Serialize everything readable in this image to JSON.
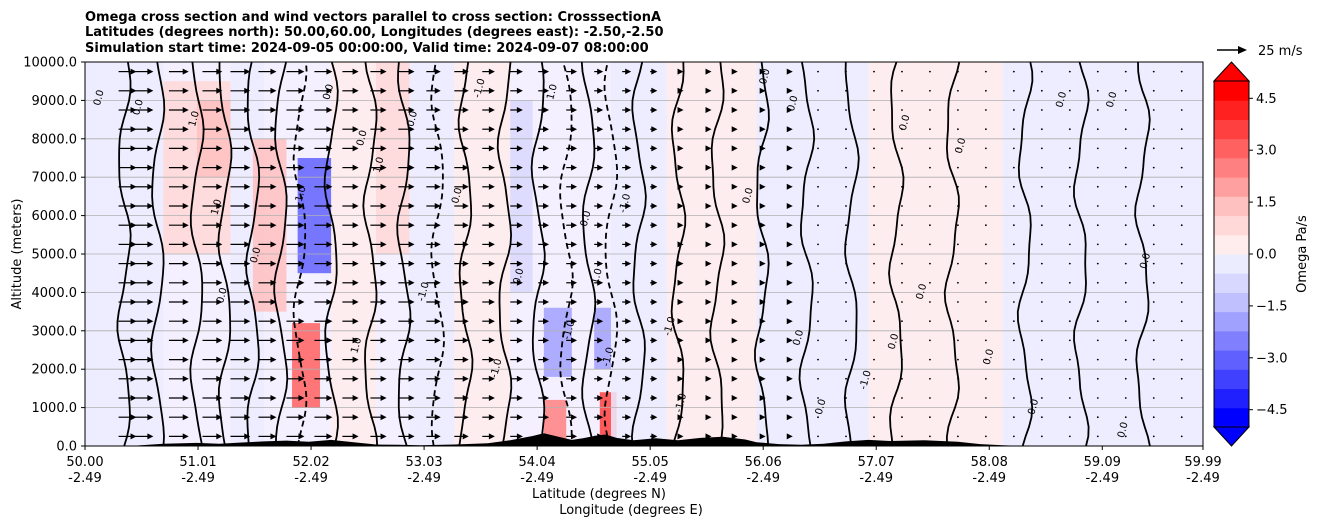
{
  "chart_data": {
    "type": "heatmap",
    "title_lines": [
      "Omega cross section and wind vectors parallel to cross section: CrosssectionA",
      "Latitudes (degrees north): 50.00,60.00, Longitudes (degrees east): -2.50,-2.50",
      "Simulation start time: 2024-09-05 00:00:00, Valid time: 2024-09-07 08:00:00"
    ],
    "xlabel": "Latitude (degrees N)",
    "xlabel2": "Longitude (degrees E)",
    "ylabel": "Altitude (meters)",
    "xlim": [
      50.0,
      59.99
    ],
    "ylim": [
      0,
      10000
    ],
    "grid": "horizontal",
    "x_ticks": [
      {
        "lat": "50.00",
        "lon": "-2.49",
        "v": 50.0
      },
      {
        "lat": "51.01",
        "lon": "-2.49",
        "v": 51.01
      },
      {
        "lat": "52.02",
        "lon": "-2.49",
        "v": 52.02
      },
      {
        "lat": "53.03",
        "lon": "-2.49",
        "v": 53.03
      },
      {
        "lat": "54.04",
        "lon": "-2.49",
        "v": 54.04
      },
      {
        "lat": "55.05",
        "lon": "-2.49",
        "v": 55.05
      },
      {
        "lat": "56.06",
        "lon": "-2.49",
        "v": 56.06
      },
      {
        "lat": "57.07",
        "lon": "-2.49",
        "v": 57.07
      },
      {
        "lat": "58.08",
        "lon": "-2.49",
        "v": 58.08
      },
      {
        "lat": "59.09",
        "lon": "-2.49",
        "v": 59.09
      },
      {
        "lat": "59.99",
        "lon": "-2.49",
        "v": 59.99
      }
    ],
    "y_ticks": [
      {
        "label": "0.0",
        "v": 0
      },
      {
        "label": "1000.0",
        "v": 1000
      },
      {
        "label": "2000.0",
        "v": 2000
      },
      {
        "label": "3000.0",
        "v": 3000
      },
      {
        "label": "4000.0",
        "v": 4000
      },
      {
        "label": "5000.0",
        "v": 5000
      },
      {
        "label": "6000.0",
        "v": 6000
      },
      {
        "label": "7000.0",
        "v": 7000
      },
      {
        "label": "8000.0",
        "v": 8000
      },
      {
        "label": "9000.0",
        "v": 9000
      },
      {
        "label": "10000.0",
        "v": 10000
      }
    ],
    "colorbar": {
      "label": "Omega Pa/s",
      "range": [
        -5.0,
        5.0
      ],
      "extend": "both",
      "ticks": [
        {
          "label": "4.5",
          "v": 4.5
        },
        {
          "label": "3.0",
          "v": 3.0
        },
        {
          "label": "1.5",
          "v": 1.5
        },
        {
          "label": "0.0",
          "v": 0.0
        },
        {
          "label": "−1.5",
          "v": -1.5
        },
        {
          "label": "−3.0",
          "v": -3.0
        },
        {
          "label": "−4.5",
          "v": -4.5
        }
      ],
      "colors": [
        "#0000ff",
        "#2020ff",
        "#4040ff",
        "#6060ff",
        "#8080ff",
        "#a0a0ff",
        "#c0c0ff",
        "#d8d8ff",
        "#ececff",
        "#ffecec",
        "#ffd8d8",
        "#ffc0c0",
        "#ffa0a0",
        "#ff8080",
        "#ff6060",
        "#ff4040",
        "#ff2020",
        "#ff0000"
      ]
    },
    "vector_key": {
      "label": "25 m/s"
    },
    "contour_labels": [
      "0.0",
      "1.0",
      "-1.0"
    ],
    "omega_cells": [
      {
        "x0": 50.0,
        "x1": 50.7,
        "y0": 0,
        "y1": 10000,
        "v": -0.3
      },
      {
        "x0": 50.7,
        "x1": 51.3,
        "y0": 5000,
        "y1": 9500,
        "v": 0.8
      },
      {
        "x0": 51.0,
        "x1": 51.3,
        "y0": 7000,
        "y1": 9000,
        "v": 1.5
      },
      {
        "x0": 51.3,
        "x1": 51.6,
        "y0": 0,
        "y1": 10000,
        "v": -0.3
      },
      {
        "x0": 51.5,
        "x1": 51.8,
        "y0": 3500,
        "y1": 8000,
        "v": 1.2
      },
      {
        "x0": 51.9,
        "x1": 52.2,
        "y0": 4500,
        "y1": 7500,
        "v": -2.8
      },
      {
        "x0": 51.85,
        "x1": 52.1,
        "y0": 1000,
        "y1": 3200,
        "v": 2.8
      },
      {
        "x0": 52.2,
        "x1": 52.6,
        "y0": 0,
        "y1": 10000,
        "v": 0.4
      },
      {
        "x0": 52.6,
        "x1": 52.9,
        "y0": 5000,
        "y1": 10000,
        "v": 0.8
      },
      {
        "x0": 52.9,
        "x1": 53.3,
        "y0": 0,
        "y1": 10000,
        "v": -0.4
      },
      {
        "x0": 53.3,
        "x1": 53.8,
        "y0": 0,
        "y1": 10000,
        "v": 0.3
      },
      {
        "x0": 53.8,
        "x1": 54.0,
        "y0": 4000,
        "y1": 9000,
        "v": -0.6
      },
      {
        "x0": 54.1,
        "x1": 54.35,
        "y0": 1800,
        "y1": 3600,
        "v": -2.0
      },
      {
        "x0": 54.1,
        "x1": 54.3,
        "y0": 0,
        "y1": 1200,
        "v": 2.6
      },
      {
        "x0": 54.55,
        "x1": 54.7,
        "y0": 2000,
        "y1": 3600,
        "v": -1.8
      },
      {
        "x0": 54.6,
        "x1": 54.75,
        "y0": 0,
        "y1": 1400,
        "v": 3.5
      },
      {
        "x0": 54.7,
        "x1": 55.2,
        "y0": 0,
        "y1": 10000,
        "v": -0.3
      },
      {
        "x0": 55.2,
        "x1": 56.0,
        "y0": 0,
        "y1": 10000,
        "v": 0.2
      },
      {
        "x0": 56.0,
        "x1": 57.0,
        "y0": 0,
        "y1": 10000,
        "v": -0.2
      },
      {
        "x0": 57.0,
        "x1": 58.2,
        "y0": 0,
        "y1": 10000,
        "v": 0.2
      },
      {
        "x0": 58.2,
        "x1": 59.99,
        "y0": 0,
        "y1": 10000,
        "v": -0.2
      }
    ],
    "vector_columns": [
      50.3,
      50.45,
      50.75,
      51.05,
      51.3,
      51.55,
      51.8,
      52.05,
      52.3,
      52.55,
      52.8,
      53.05,
      53.3,
      53.55,
      53.8,
      54.05,
      54.3,
      54.55,
      54.8,
      55.05,
      55.3,
      55.55,
      55.8,
      56.05,
      56.3,
      56.55,
      56.8,
      57.05,
      57.3,
      57.55,
      57.8,
      58.05,
      58.3,
      58.55,
      58.8,
      59.05,
      59.3,
      59.55,
      59.8
    ],
    "vector_levels": [
      250,
      750,
      1250,
      1750,
      2250,
      2750,
      3250,
      3750,
      4250,
      4750,
      5250,
      5750,
      6250,
      6750,
      7250,
      7750,
      8250,
      8750,
      9250,
      9750
    ],
    "vector_speeds": [
      20,
      20,
      22,
      22,
      22,
      20,
      20,
      20,
      18,
      18,
      18,
      16,
      16,
      14,
      14,
      12,
      12,
      10,
      10,
      8,
      6,
      6,
      4,
      4,
      3,
      2,
      2,
      2,
      1,
      1,
      1,
      1,
      1,
      1,
      1,
      1,
      1,
      1,
      1
    ],
    "terrain": [
      [
        50.0,
        0
      ],
      [
        50.4,
        0
      ],
      [
        50.5,
        20
      ],
      [
        50.7,
        60
      ],
      [
        51.0,
        80
      ],
      [
        51.2,
        60
      ],
      [
        51.4,
        90
      ],
      [
        51.6,
        120
      ],
      [
        51.8,
        140
      ],
      [
        52.0,
        110
      ],
      [
        52.2,
        160
      ],
      [
        52.4,
        100
      ],
      [
        52.6,
        40
      ],
      [
        52.8,
        30
      ],
      [
        53.0,
        20
      ],
      [
        53.3,
        40
      ],
      [
        53.6,
        70
      ],
      [
        53.8,
        150
      ],
      [
        54.0,
        260
      ],
      [
        54.1,
        330
      ],
      [
        54.25,
        230
      ],
      [
        54.35,
        160
      ],
      [
        54.45,
        200
      ],
      [
        54.55,
        260
      ],
      [
        54.65,
        300
      ],
      [
        54.75,
        210
      ],
      [
        54.9,
        150
      ],
      [
        55.1,
        200
      ],
      [
        55.3,
        150
      ],
      [
        55.5,
        210
      ],
      [
        55.7,
        240
      ],
      [
        55.9,
        170
      ],
      [
        56.0,
        100
      ],
      [
        56.2,
        50
      ],
      [
        56.4,
        30
      ],
      [
        56.6,
        60
      ],
      [
        56.8,
        120
      ],
      [
        57.0,
        160
      ],
      [
        57.2,
        130
      ],
      [
        57.5,
        150
      ],
      [
        57.8,
        110
      ],
      [
        58.0,
        50
      ],
      [
        58.2,
        20
      ],
      [
        58.4,
        0
      ],
      [
        59.99,
        0
      ]
    ],
    "contours": [
      {
        "x": 50.35,
        "style": "solid",
        "amp": 80
      },
      {
        "x": 50.65,
        "style": "solid",
        "amp": 60
      },
      {
        "x": 51.0,
        "style": "solid",
        "amp": 70
      },
      {
        "x": 51.25,
        "style": "solid",
        "amp": 70
      },
      {
        "x": 51.5,
        "style": "solid",
        "amp": 80
      },
      {
        "x": 51.75,
        "style": "solid",
        "amp": 70
      },
      {
        "x": 51.92,
        "style": "dashed",
        "amp": 60
      },
      {
        "x": 52.2,
        "style": "solid",
        "amp": 70
      },
      {
        "x": 52.55,
        "style": "solid",
        "amp": 90
      },
      {
        "x": 52.85,
        "style": "solid",
        "amp": 80
      },
      {
        "x": 53.15,
        "style": "dashed",
        "amp": 50
      },
      {
        "x": 53.4,
        "style": "solid",
        "amp": 90
      },
      {
        "x": 53.75,
        "style": "solid",
        "amp": 90
      },
      {
        "x": 54.05,
        "style": "solid",
        "amp": 70
      },
      {
        "x": 54.3,
        "style": "dashed",
        "amp": 60
      },
      {
        "x": 54.5,
        "style": "solid",
        "amp": 70
      },
      {
        "x": 54.7,
        "style": "dashed",
        "amp": 50
      },
      {
        "x": 54.95,
        "style": "solid",
        "amp": 90
      },
      {
        "x": 55.3,
        "style": "solid",
        "amp": 110
      },
      {
        "x": 55.65,
        "style": "solid",
        "amp": 120
      },
      {
        "x": 56.05,
        "style": "solid",
        "amp": 110
      },
      {
        "x": 56.45,
        "style": "solid",
        "amp": 120
      },
      {
        "x": 56.85,
        "style": "solid",
        "amp": 100
      },
      {
        "x": 57.25,
        "style": "solid",
        "amp": 130
      },
      {
        "x": 57.75,
        "style": "solid",
        "amp": 140
      },
      {
        "x": 58.4,
        "style": "solid",
        "amp": 130
      },
      {
        "x": 58.9,
        "style": "solid",
        "amp": 150
      },
      {
        "x": 59.45,
        "style": "solid",
        "amp": 140
      }
    ],
    "contour_label_positions": [
      {
        "x": 50.15,
        "y": 9050,
        "t": "0.0"
      },
      {
        "x": 50.5,
        "y": 8800,
        "t": "0.0"
      },
      {
        "x": 51.0,
        "y": 8500,
        "t": "1.0"
      },
      {
        "x": 51.2,
        "y": 6200,
        "t": "1.0"
      },
      {
        "x": 51.25,
        "y": 3900,
        "t": "0.0"
      },
      {
        "x": 51.55,
        "y": 4950,
        "t": "0.0"
      },
      {
        "x": 51.95,
        "y": 6500,
        "t": "-1.0"
      },
      {
        "x": 52.2,
        "y": 9200,
        "t": "0.0"
      },
      {
        "x": 52.5,
        "y": 8000,
        "t": "0.0"
      },
      {
        "x": 52.65,
        "y": 7300,
        "t": "1.0"
      },
      {
        "x": 52.45,
        "y": 2600,
        "t": "1.0"
      },
      {
        "x": 52.95,
        "y": 8500,
        "t": "0.0"
      },
      {
        "x": 53.05,
        "y": 4000,
        "t": "-1.0"
      },
      {
        "x": 53.35,
        "y": 6500,
        "t": "0.0"
      },
      {
        "x": 53.55,
        "y": 9300,
        "t": "-1.0"
      },
      {
        "x": 53.7,
        "y": 2000,
        "t": "-1.0"
      },
      {
        "x": 53.9,
        "y": 4400,
        "t": "0.0"
      },
      {
        "x": 54.2,
        "y": 9200,
        "t": "1.0"
      },
      {
        "x": 54.35,
        "y": 3000,
        "t": "-1.0"
      },
      {
        "x": 54.5,
        "y": 5900,
        "t": "0.0"
      },
      {
        "x": 54.6,
        "y": 4400,
        "t": "1.0"
      },
      {
        "x": 54.7,
        "y": 2300,
        "t": "-1.0"
      },
      {
        "x": 54.85,
        "y": 6300,
        "t": "-1.0"
      },
      {
        "x": 55.25,
        "y": 3100,
        "t": "-1.0"
      },
      {
        "x": 55.35,
        "y": 1100,
        "t": "-1.0"
      },
      {
        "x": 56.1,
        "y": 9600,
        "t": "0.0"
      },
      {
        "x": 56.35,
        "y": 8900,
        "t": "0.0"
      },
      {
        "x": 55.95,
        "y": 6500,
        "t": "0.0"
      },
      {
        "x": 56.4,
        "y": 2800,
        "t": "0.0"
      },
      {
        "x": 56.6,
        "y": 1000,
        "t": "0.0"
      },
      {
        "x": 57.0,
        "y": 1700,
        "t": "-1.0"
      },
      {
        "x": 57.25,
        "y": 2700,
        "t": "0.0"
      },
      {
        "x": 57.35,
        "y": 8400,
        "t": "0.0"
      },
      {
        "x": 57.5,
        "y": 4000,
        "t": "0.0"
      },
      {
        "x": 57.85,
        "y": 7800,
        "t": "0.0"
      },
      {
        "x": 58.1,
        "y": 2300,
        "t": "0.0"
      },
      {
        "x": 58.5,
        "y": 1000,
        "t": "0.0"
      },
      {
        "x": 58.75,
        "y": 9000,
        "t": "0.0"
      },
      {
        "x": 59.2,
        "y": 9000,
        "t": "0.0"
      },
      {
        "x": 59.5,
        "y": 4800,
        "t": "0.0"
      },
      {
        "x": 59.3,
        "y": 400,
        "t": "0.0"
      }
    ]
  }
}
